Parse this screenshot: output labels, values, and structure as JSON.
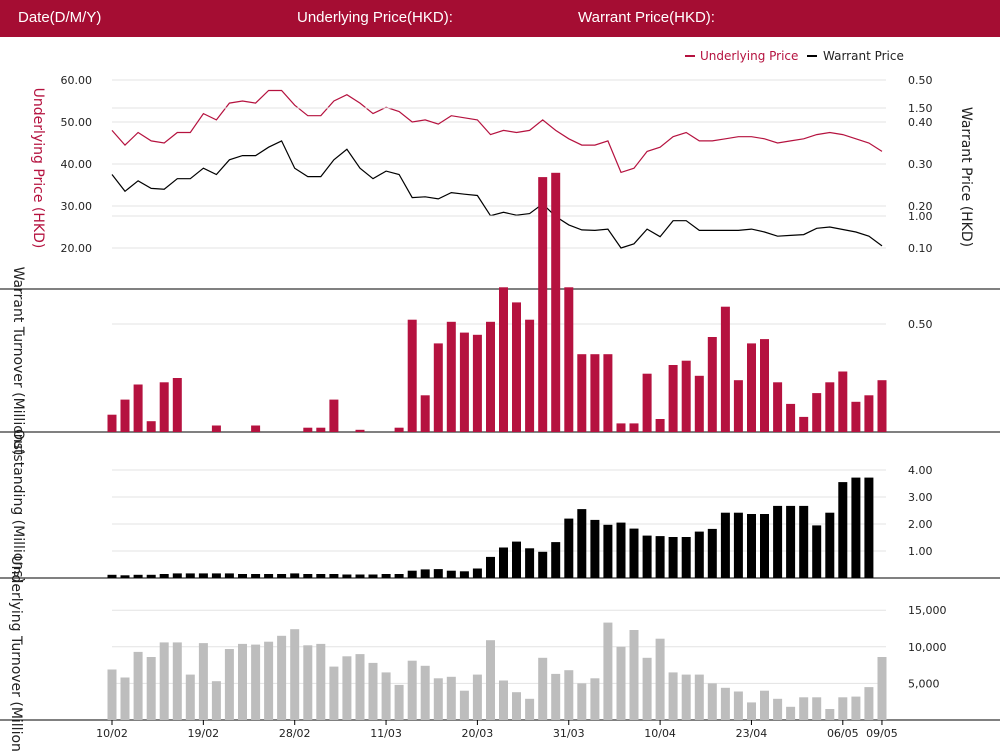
{
  "header": {
    "date_label": "Date(D/M/Y)",
    "underlying_label": "Underlying Price(HKD):",
    "warrant_label": "Warrant Price(HKD):"
  },
  "colors": {
    "header_bg": "#a50d33",
    "underlying": "#b5123f",
    "warrant": "#000000",
    "underlying_turnover": "#bdbdbd"
  },
  "chart_data": [
    {
      "type": "line",
      "title": "",
      "legend": [
        "Underlying Price",
        "Warrant Price"
      ],
      "legend_position": "top-right",
      "ylabel_left": "Underlying Price (HKD)",
      "ylabel_right": "Warrant Price (HKD)",
      "yticks_left": [
        "20.00",
        "30.00",
        "40.00",
        "50.00",
        "60.00"
      ],
      "yticks_right": [
        "0.10",
        "0.20",
        "0.30",
        "0.40",
        "0.50"
      ],
      "ylim_left": [
        20,
        60
      ],
      "ylim_right": [
        0.1,
        0.5
      ],
      "series": [
        {
          "name": "Underlying Price",
          "axis": "left",
          "values": [
            48,
            44.5,
            47.5,
            45.5,
            45,
            47.5,
            47.5,
            52,
            50.5,
            54.5,
            55,
            54.5,
            57.5,
            57.5,
            54,
            51.5,
            51.5,
            55,
            56.5,
            54.5,
            52,
            53.5,
            52.5,
            50,
            50.5,
            49.5,
            51.5,
            51,
            50.5,
            47,
            48,
            47.5,
            48,
            50.5,
            48,
            46,
            44.5,
            44.5,
            45.5,
            38,
            39,
            43,
            44,
            46.5,
            47.5,
            45.5,
            45.5,
            46,
            46.5,
            46.5,
            46,
            45,
            45.5,
            46,
            47,
            47.5,
            47,
            46,
            45,
            43
          ]
        },
        {
          "name": "Warrant Price",
          "axis": "right",
          "values": [
            0.275,
            0.235,
            0.26,
            0.242,
            0.24,
            0.265,
            0.265,
            0.29,
            0.275,
            0.31,
            0.32,
            0.32,
            0.34,
            0.355,
            0.29,
            0.27,
            0.27,
            0.31,
            0.335,
            0.29,
            0.265,
            0.283,
            0.275,
            0.22,
            0.222,
            0.217,
            0.232,
            0.228,
            0.225,
            0.177,
            0.185,
            0.178,
            0.182,
            0.205,
            0.175,
            0.155,
            0.143,
            0.142,
            0.145,
            0.1,
            0.11,
            0.145,
            0.127,
            0.165,
            0.165,
            0.142,
            0.142,
            0.142,
            0.142,
            0.145,
            0.138,
            0.128,
            0.13,
            0.132,
            0.147,
            0.15,
            0.144,
            0.138,
            0.128,
            0.105
          ]
        }
      ]
    },
    {
      "type": "bar",
      "ylabel": "Warrant Turnover (Millions)",
      "yticks": [
        "0.50",
        "1.00",
        "1.50"
      ],
      "ylim": [
        0,
        1.7
      ],
      "values": [
        0.08,
        0.15,
        0.22,
        0.05,
        0.23,
        0.25,
        0,
        0,
        0.03,
        0,
        0,
        0.03,
        0,
        0,
        0,
        0.02,
        0.02,
        0.15,
        0,
        0.01,
        0,
        0,
        0.02,
        0.52,
        0.17,
        0.41,
        0.51,
        0.46,
        0.45,
        0.51,
        0.67,
        0.6,
        0.52,
        1.18,
        1.2,
        0.67,
        0.36,
        0.36,
        0.36,
        0.04,
        0.04,
        0.27,
        0.06,
        0.31,
        0.33,
        0.26,
        0.44,
        0.58,
        0.24,
        0.41,
        0.43,
        0.23,
        0.13,
        0.07,
        0.18,
        0.23,
        0.28,
        0.14,
        0.17,
        0.24
      ]
    },
    {
      "type": "bar",
      "ylabel": "Outstanding (Millions)",
      "yticks": [
        "1.00",
        "2.00",
        "3.00",
        "4.00"
      ],
      "ylim": [
        0,
        4.2
      ],
      "values": [
        0.12,
        0.1,
        0.12,
        0.12,
        0.15,
        0.17,
        0.17,
        0.17,
        0.17,
        0.17,
        0.15,
        0.15,
        0.15,
        0.15,
        0.17,
        0.15,
        0.15,
        0.15,
        0.13,
        0.13,
        0.13,
        0.15,
        0.15,
        0.27,
        0.32,
        0.33,
        0.27,
        0.25,
        0.35,
        0.78,
        1.13,
        1.35,
        1.1,
        0.97,
        1.33,
        2.2,
        2.55,
        2.15,
        1.97,
        2.05,
        1.83,
        1.57,
        1.55,
        1.52,
        1.52,
        1.72,
        1.82,
        2.42,
        2.42,
        2.37,
        2.37,
        2.67,
        2.67,
        2.67,
        1.95,
        2.42,
        3.55,
        3.72,
        3.72,
        0
      ]
    },
    {
      "type": "bar",
      "ylabel": "Underlying Turnover (Millions)",
      "yticks": [
        "5,000",
        "10,000",
        "15,000"
      ],
      "ylim": [
        0,
        16000
      ],
      "values": [
        6900,
        5800,
        9300,
        8600,
        10600,
        10600,
        6200,
        10500,
        5300,
        9700,
        10400,
        10300,
        10700,
        11500,
        12400,
        10200,
        10400,
        7300,
        8700,
        9000,
        7800,
        6500,
        4800,
        8100,
        7400,
        5700,
        5900,
        4000,
        6200,
        10900,
        5400,
        3800,
        2900,
        8500,
        6300,
        6800,
        5000,
        5700,
        13300,
        10000,
        12300,
        8500,
        11100,
        6500,
        6200,
        6200,
        5000,
        4400,
        3900,
        2400,
        4000,
        2900,
        1800,
        3100,
        3100,
        1500,
        3100,
        3200,
        4500,
        8600
      ]
    }
  ],
  "x_axis": {
    "tick_labels": [
      "10/02",
      "19/02",
      "28/02",
      "11/03",
      "20/03",
      "31/03",
      "10/04",
      "23/04",
      "06/05",
      "09/05"
    ],
    "tick_index": [
      0,
      7,
      14,
      21,
      28,
      35,
      42,
      49,
      56,
      59
    ]
  }
}
